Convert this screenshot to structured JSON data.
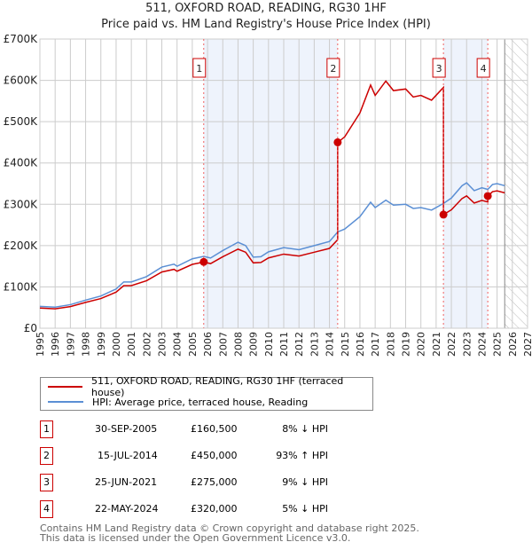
{
  "chart_data": {
    "type": "line",
    "title": "511, OXFORD ROAD, READING, RG30 1HF",
    "subtitle": "Price paid vs. HM Land Registry's House Price Index (HPI)",
    "xlim": [
      1995,
      2027
    ],
    "ylim": [
      0,
      700000
    ],
    "y_ticks": [
      {
        "v": 0,
        "label": "£0"
      },
      {
        "v": 100000,
        "label": "£100K"
      },
      {
        "v": 200000,
        "label": "£200K"
      },
      {
        "v": 300000,
        "label": "£300K"
      },
      {
        "v": 400000,
        "label": "£400K"
      },
      {
        "v": 500000,
        "label": "£500K"
      },
      {
        "v": 600000,
        "label": "£600K"
      },
      {
        "v": 700000,
        "label": "£700K"
      }
    ],
    "x_ticks": [
      "1995",
      "1996",
      "1997",
      "1998",
      "1999",
      "2000",
      "2001",
      "2002",
      "2003",
      "2004",
      "2005",
      "2006",
      "2007",
      "2008",
      "2009",
      "2010",
      "2011",
      "2012",
      "2013",
      "2014",
      "2015",
      "2016",
      "2017",
      "2018",
      "2019",
      "2020",
      "2021",
      "2022",
      "2023",
      "2024",
      "2025",
      "2026",
      "2027"
    ],
    "grid": true,
    "forecast_hatch_from": 2025.5,
    "series": [
      {
        "name": "511, OXFORD ROAD, READING, RG30 1HF (terraced house)",
        "color": "#cc0000",
        "derived_from_hpi_ratios": [
          0.92,
          0.92,
          1.93,
          0.91,
          0.95
        ]
      },
      {
        "name": "HPI: Average price, terraced house, Reading",
        "color": "#5b8fd4",
        "x": [
          1995,
          1996,
          1997,
          1998,
          1999,
          2000,
          2000.5,
          2001,
          2002,
          2003,
          2003.8,
          2004,
          2005,
          2005.75,
          2006.2,
          2007,
          2008,
          2008.5,
          2009,
          2009.5,
          2010,
          2011,
          2012,
          2013,
          2014,
          2014.54,
          2015,
          2016,
          2016.7,
          2017,
          2017.7,
          2018.2,
          2019,
          2019.5,
          2020,
          2020.7,
          2021.48,
          2022,
          2022.7,
          2023,
          2023.5,
          2024,
          2024.39,
          2024.7,
          2025,
          2025.5
        ],
        "y": [
          53000,
          51000,
          57000,
          68000,
          78000,
          95000,
          112000,
          112000,
          125000,
          148000,
          155000,
          150000,
          168000,
          174000,
          170000,
          188000,
          208000,
          200000,
          172000,
          173000,
          185000,
          195000,
          190000,
          200000,
          210000,
          233000,
          240000,
          270000,
          305000,
          292000,
          310000,
          298000,
          300000,
          290000,
          292000,
          286000,
          302000,
          315000,
          345000,
          352000,
          333000,
          340000,
          336000,
          348000,
          350000,
          345000
        ]
      }
    ],
    "sales": [
      {
        "n": "1",
        "x": 2005.75,
        "price": 160500,
        "date": "30-SEP-2005",
        "price_label": "£160,500",
        "hpi": "8% ↓ HPI"
      },
      {
        "n": "2",
        "x": 2014.54,
        "price": 450000,
        "date": "15-JUL-2014",
        "price_label": "£450,000",
        "hpi": "93% ↑ HPI"
      },
      {
        "n": "3",
        "x": 2021.48,
        "price": 275000,
        "date": "25-JUN-2021",
        "price_label": "£275,000",
        "hpi": "9% ↓ HPI"
      },
      {
        "n": "4",
        "x": 2024.39,
        "price": 320000,
        "date": "22-MAY-2024",
        "price_label": "£320,000",
        "hpi": "5% ↓ HPI"
      }
    ],
    "shaded_ranges": [
      [
        2005.75,
        2014.54
      ],
      [
        2021.48,
        2024.39
      ]
    ]
  },
  "legend": {
    "property": "511, OXFORD ROAD, READING, RG30 1HF (terraced house)",
    "hpi": "HPI: Average price, terraced house, Reading"
  },
  "footer": {
    "line1": "Contains HM Land Registry data © Crown copyright and database right 2025.",
    "line2": "This data is licensed under the Open Government Licence v3.0."
  }
}
